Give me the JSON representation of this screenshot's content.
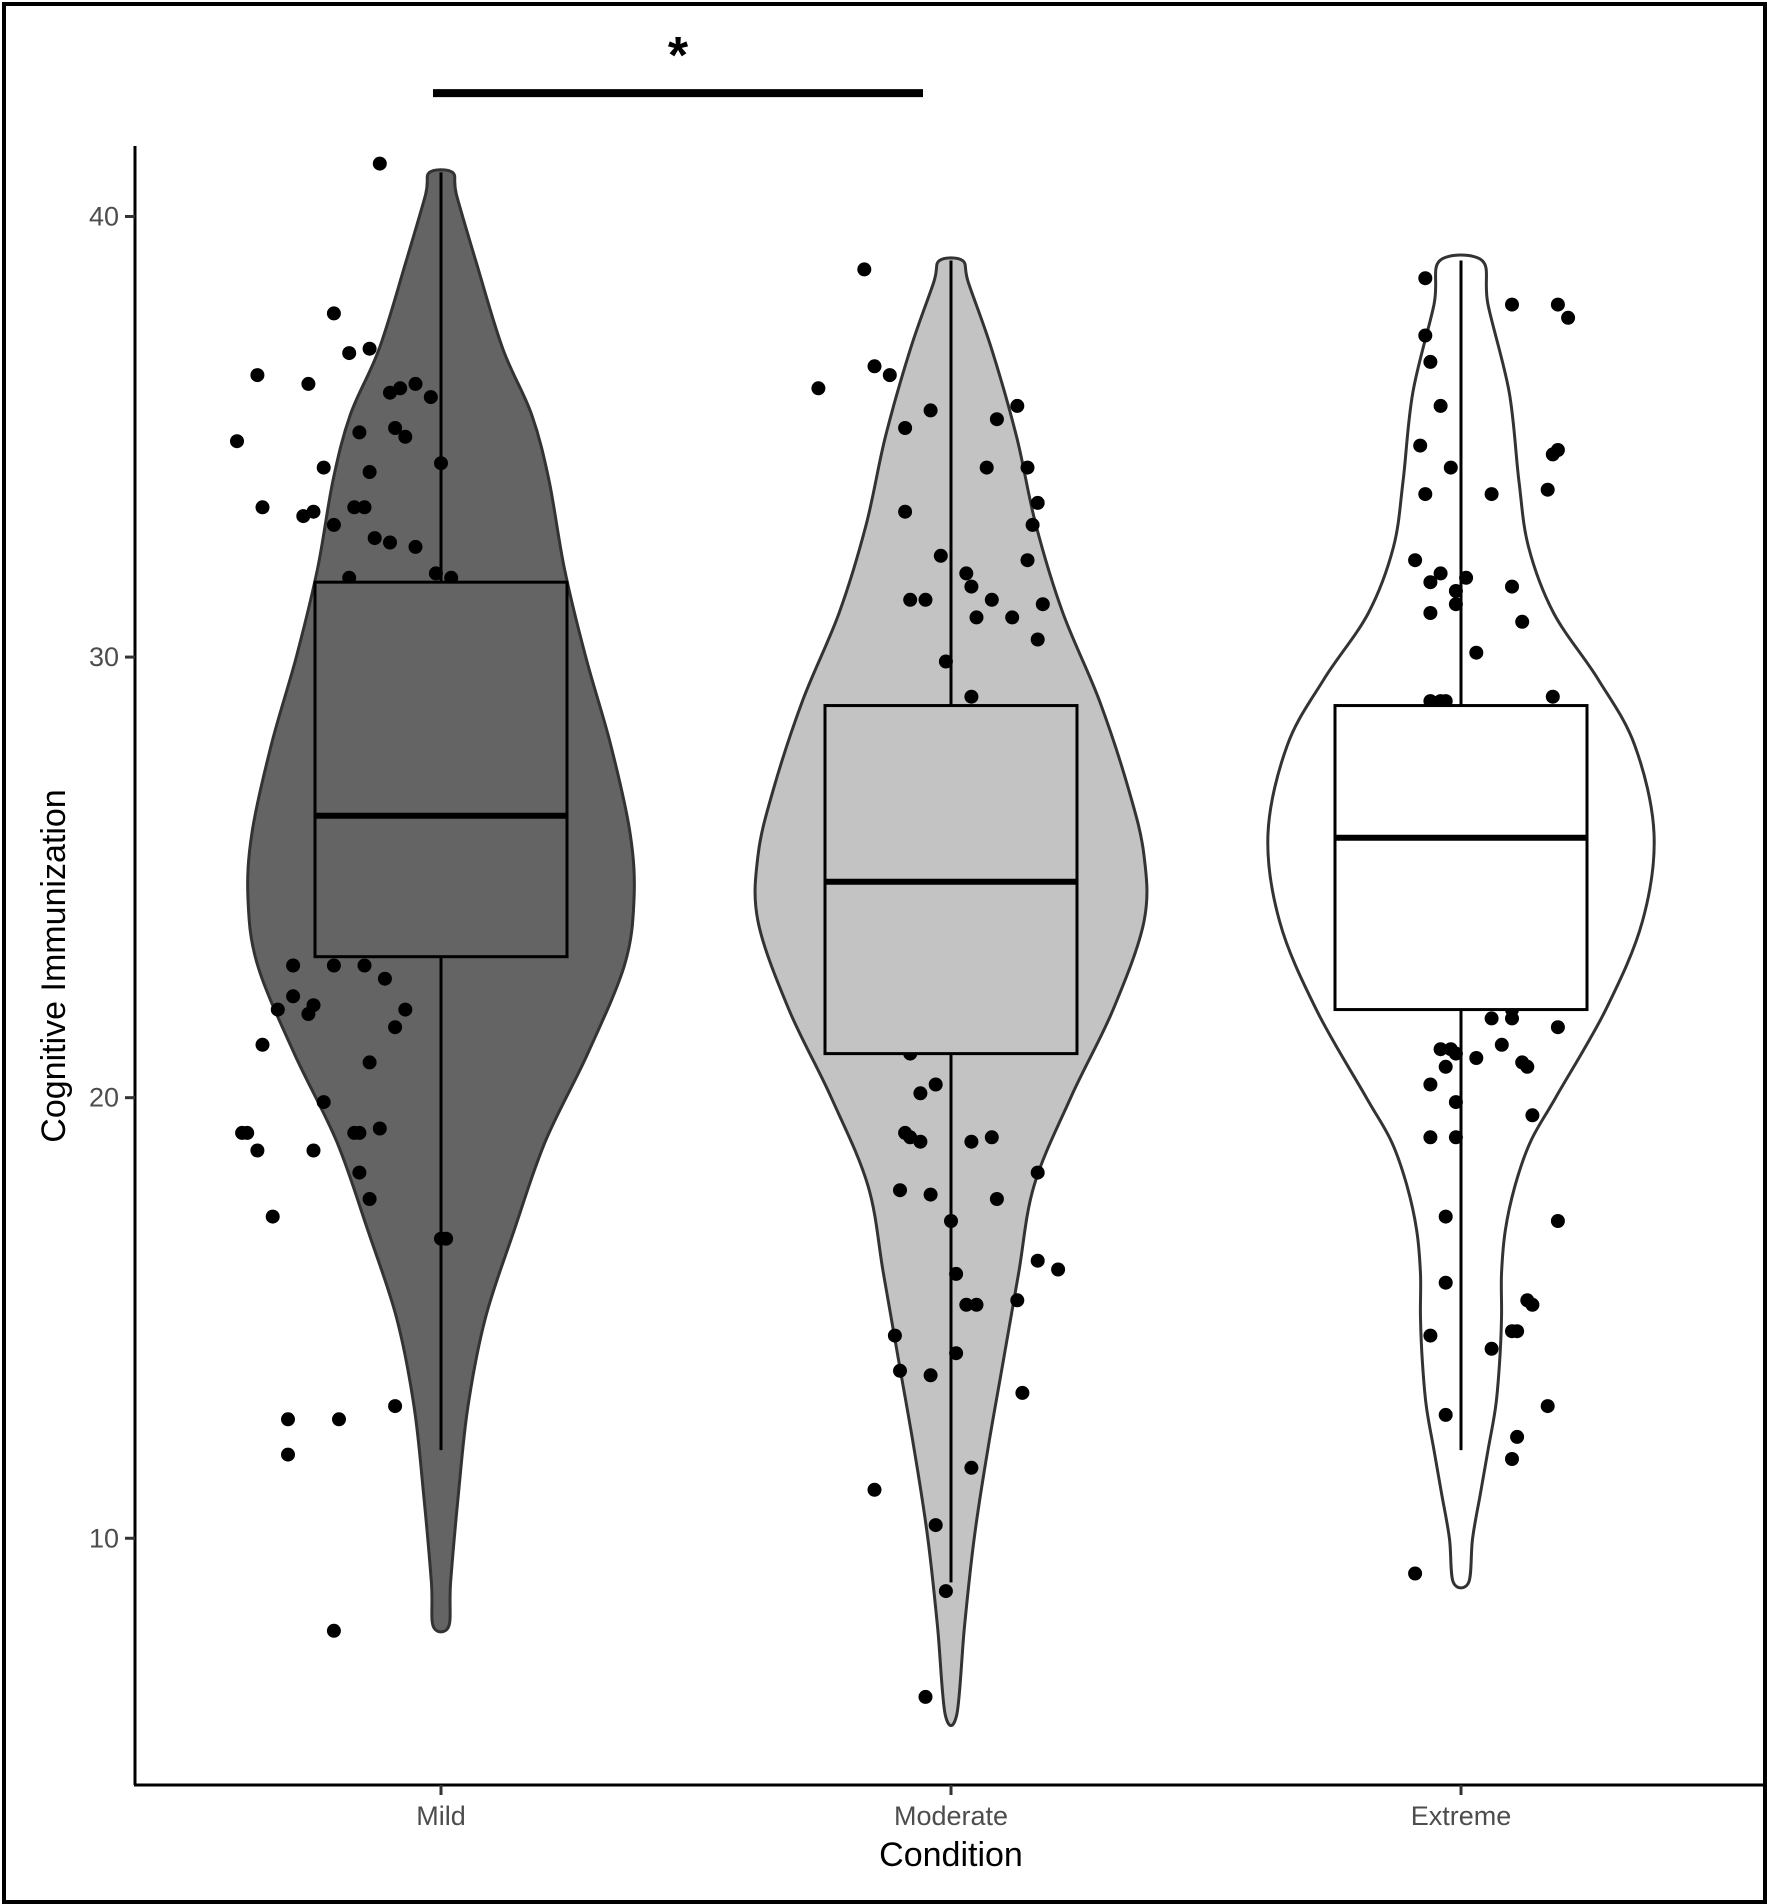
{
  "chart_data": {
    "type": "violin",
    "xlabel": "Condition",
    "ylabel": "Cognitive Immunization",
    "categories": [
      "Mild",
      "Moderate",
      "Extreme"
    ],
    "yticks": [
      10,
      20,
      30,
      40
    ],
    "ylim": [
      4.4,
      41.6
    ],
    "series": [
      {
        "category": "Mild",
        "fill": "#646464",
        "box": {
          "q1": 23.2,
          "median": 26.4,
          "q3": 31.7,
          "whisker_low": 12,
          "whisker_high": 41
        },
        "violin_range": [
          8,
          41
        ],
        "violin_profile": [
          [
            8,
            0.04
          ],
          [
            9,
            0.05
          ],
          [
            11,
            0.09
          ],
          [
            13,
            0.14
          ],
          [
            15,
            0.23
          ],
          [
            17,
            0.38
          ],
          [
            19,
            0.54
          ],
          [
            21,
            0.76
          ],
          [
            23,
            0.95
          ],
          [
            24.5,
            1.0
          ],
          [
            26,
            0.98
          ],
          [
            28,
            0.88
          ],
          [
            30,
            0.75
          ],
          [
            32,
            0.64
          ],
          [
            34,
            0.56
          ],
          [
            35.5,
            0.47
          ],
          [
            37,
            0.32
          ],
          [
            39,
            0.18
          ],
          [
            40.5,
            0.08
          ],
          [
            41,
            0.06
          ]
        ],
        "points": [
          [
            0.88,
            41.2
          ],
          [
            0.79,
            37.8
          ],
          [
            0.64,
            36.4
          ],
          [
            0.74,
            36.2
          ],
          [
            0.82,
            36.9
          ],
          [
            0.86,
            37.0
          ],
          [
            0.6,
            34.9
          ],
          [
            0.77,
            34.3
          ],
          [
            0.9,
            36.0
          ],
          [
            0.92,
            36.1
          ],
          [
            0.95,
            36.2
          ],
          [
            0.98,
            35.9
          ],
          [
            0.84,
            35.1
          ],
          [
            0.91,
            35.2
          ],
          [
            0.93,
            35.0
          ],
          [
            1.0,
            34.4
          ],
          [
            0.65,
            33.4
          ],
          [
            0.73,
            33.2
          ],
          [
            0.75,
            33.3
          ],
          [
            0.79,
            33.0
          ],
          [
            0.83,
            33.4
          ],
          [
            0.85,
            33.4
          ],
          [
            0.86,
            34.2
          ],
          [
            0.87,
            32.7
          ],
          [
            0.9,
            32.6
          ],
          [
            0.95,
            32.5
          ],
          [
            0.99,
            31.9
          ],
          [
            1.02,
            31.8
          ],
          [
            0.82,
            31.8
          ],
          [
            0.71,
            23.0
          ],
          [
            0.79,
            23.0
          ],
          [
            0.85,
            23.0
          ],
          [
            0.89,
            22.7
          ],
          [
            0.71,
            22.3
          ],
          [
            0.68,
            22.0
          ],
          [
            0.74,
            21.9
          ],
          [
            0.75,
            22.1
          ],
          [
            0.91,
            21.6
          ],
          [
            0.93,
            22.0
          ],
          [
            0.65,
            21.2
          ],
          [
            0.86,
            20.8
          ],
          [
            0.77,
            19.9
          ],
          [
            0.61,
            19.2
          ],
          [
            0.62,
            19.2
          ],
          [
            0.64,
            18.8
          ],
          [
            0.75,
            18.8
          ],
          [
            0.83,
            19.2
          ],
          [
            0.84,
            19.2
          ],
          [
            0.88,
            19.3
          ],
          [
            0.84,
            18.3
          ],
          [
            0.86,
            17.7
          ],
          [
            0.67,
            17.3
          ],
          [
            1.0,
            16.8
          ],
          [
            1.01,
            16.8
          ],
          [
            0.7,
            12.7
          ],
          [
            0.8,
            12.7
          ],
          [
            0.7,
            11.9
          ],
          [
            0.91,
            13.0
          ],
          [
            0.79,
            7.9
          ]
        ]
      },
      {
        "category": "Moderate",
        "fill": "#c3c3c3",
        "box": {
          "q1": 21,
          "median": 24.9,
          "q3": 28.9,
          "whisker_low": 9,
          "whisker_high": 39
        },
        "violin_range": [
          6,
          39
        ],
        "violin_profile": [
          [
            6,
            0.03
          ],
          [
            8,
            0.07
          ],
          [
            10,
            0.12
          ],
          [
            12,
            0.19
          ],
          [
            14,
            0.27
          ],
          [
            16,
            0.35
          ],
          [
            18,
            0.43
          ],
          [
            20,
            0.62
          ],
          [
            22,
            0.84
          ],
          [
            24,
            1.0
          ],
          [
            25.5,
            1.0
          ],
          [
            27,
            0.92
          ],
          [
            29,
            0.77
          ],
          [
            31,
            0.58
          ],
          [
            33,
            0.44
          ],
          [
            35,
            0.34
          ],
          [
            37,
            0.21
          ],
          [
            38.5,
            0.09
          ],
          [
            39,
            0.06
          ]
        ],
        "points": [
          [
            0.83,
            38.8
          ],
          [
            0.74,
            36.1
          ],
          [
            0.85,
            36.6
          ],
          [
            0.88,
            36.4
          ],
          [
            0.91,
            35.2
          ],
          [
            0.96,
            35.6
          ],
          [
            1.09,
            35.4
          ],
          [
            1.13,
            35.7
          ],
          [
            1.07,
            34.3
          ],
          [
            1.15,
            34.3
          ],
          [
            1.17,
            33.5
          ],
          [
            0.91,
            33.3
          ],
          [
            1.16,
            33.0
          ],
          [
            0.98,
            32.3
          ],
          [
            1.15,
            32.2
          ],
          [
            1.03,
            31.9
          ],
          [
            1.04,
            31.6
          ],
          [
            1.08,
            31.3
          ],
          [
            1.12,
            30.9
          ],
          [
            1.18,
            31.2
          ],
          [
            0.92,
            31.3
          ],
          [
            0.95,
            31.3
          ],
          [
            1.05,
            30.9
          ],
          [
            1.17,
            30.4
          ],
          [
            0.99,
            29.9
          ],
          [
            1.04,
            29.1
          ],
          [
            0.92,
            21.0
          ],
          [
            0.94,
            20.1
          ],
          [
            0.97,
            20.3
          ],
          [
            0.91,
            19.2
          ],
          [
            0.92,
            19.1
          ],
          [
            0.94,
            19.0
          ],
          [
            1.04,
            19.0
          ],
          [
            1.08,
            19.1
          ],
          [
            1.17,
            18.3
          ],
          [
            0.9,
            17.9
          ],
          [
            0.96,
            17.8
          ],
          [
            1.09,
            17.7
          ],
          [
            1.0,
            17.2
          ],
          [
            1.17,
            16.3
          ],
          [
            1.21,
            16.1
          ],
          [
            1.01,
            16.0
          ],
          [
            1.03,
            15.3
          ],
          [
            1.05,
            15.3
          ],
          [
            1.13,
            15.4
          ],
          [
            0.89,
            14.6
          ],
          [
            1.01,
            14.2
          ],
          [
            0.9,
            13.8
          ],
          [
            0.96,
            13.7
          ],
          [
            1.14,
            13.3
          ],
          [
            0.85,
            11.1
          ],
          [
            1.04,
            11.6
          ],
          [
            0.97,
            10.3
          ],
          [
            0.99,
            8.8
          ],
          [
            0.95,
            6.4
          ]
        ]
      },
      {
        "category": "Extreme",
        "fill": "#ffffff",
        "box": {
          "q1": 22,
          "median": 25.9,
          "q3": 28.9,
          "whisker_low": 12,
          "whisker_high": 39
        },
        "violin_range": [
          9,
          39
        ],
        "violin_profile": [
          [
            9,
            0.04
          ],
          [
            10,
            0.06
          ],
          [
            11,
            0.1
          ],
          [
            12,
            0.14
          ],
          [
            13,
            0.18
          ],
          [
            14,
            0.2
          ],
          [
            15,
            0.21
          ],
          [
            16,
            0.21
          ],
          [
            17,
            0.23
          ],
          [
            18,
            0.28
          ],
          [
            19,
            0.36
          ],
          [
            20,
            0.49
          ],
          [
            22,
            0.75
          ],
          [
            24,
            0.94
          ],
          [
            26,
            1.0
          ],
          [
            28,
            0.9
          ],
          [
            29.5,
            0.71
          ],
          [
            31,
            0.48
          ],
          [
            32.5,
            0.35
          ],
          [
            34,
            0.3
          ],
          [
            36,
            0.25
          ],
          [
            38,
            0.14
          ],
          [
            39,
            0.11
          ]
        ],
        "points": [
          [
            0.93,
            38.6
          ],
          [
            0.93,
            37.3
          ],
          [
            1.1,
            38.0
          ],
          [
            0.94,
            36.7
          ],
          [
            1.19,
            38.0
          ],
          [
            1.21,
            37.7
          ],
          [
            0.96,
            35.7
          ],
          [
            0.92,
            34.8
          ],
          [
            1.18,
            34.6
          ],
          [
            1.19,
            34.7
          ],
          [
            1.17,
            33.8
          ],
          [
            0.93,
            33.7
          ],
          [
            1.06,
            33.7
          ],
          [
            0.98,
            34.3
          ],
          [
            0.91,
            32.2
          ],
          [
            0.94,
            31.7
          ],
          [
            1.01,
            31.8
          ],
          [
            0.99,
            31.5
          ],
          [
            0.96,
            31.9
          ],
          [
            1.1,
            31.6
          ],
          [
            0.94,
            31.0
          ],
          [
            0.99,
            31.2
          ],
          [
            1.03,
            30.1
          ],
          [
            1.12,
            30.8
          ],
          [
            0.94,
            29.0
          ],
          [
            0.96,
            29.0
          ],
          [
            0.97,
            29.0
          ],
          [
            1.18,
            29.1
          ],
          [
            1.1,
            22.0
          ],
          [
            1.06,
            21.8
          ],
          [
            1.1,
            21.8
          ],
          [
            1.19,
            21.6
          ],
          [
            0.96,
            21.1
          ],
          [
            0.98,
            21.1
          ],
          [
            0.99,
            21.0
          ],
          [
            1.03,
            20.9
          ],
          [
            0.97,
            20.7
          ],
          [
            1.08,
            21.2
          ],
          [
            1.12,
            20.8
          ],
          [
            1.13,
            20.7
          ],
          [
            0.94,
            20.3
          ],
          [
            0.99,
            19.9
          ],
          [
            1.14,
            19.6
          ],
          [
            0.94,
            19.1
          ],
          [
            0.99,
            19.1
          ],
          [
            0.97,
            17.3
          ],
          [
            1.19,
            17.2
          ],
          [
            0.97,
            15.8
          ],
          [
            1.13,
            15.4
          ],
          [
            1.14,
            15.3
          ],
          [
            0.94,
            14.6
          ],
          [
            1.1,
            14.7
          ],
          [
            1.11,
            14.7
          ],
          [
            1.06,
            14.3
          ],
          [
            1.17,
            13.0
          ],
          [
            0.97,
            12.8
          ],
          [
            1.11,
            12.3
          ],
          [
            1.1,
            11.8
          ],
          [
            0.91,
            9.2
          ]
        ]
      }
    ],
    "significance": {
      "from": "Mild",
      "to": "Moderate",
      "label": "*",
      "y": 42.8
    }
  }
}
